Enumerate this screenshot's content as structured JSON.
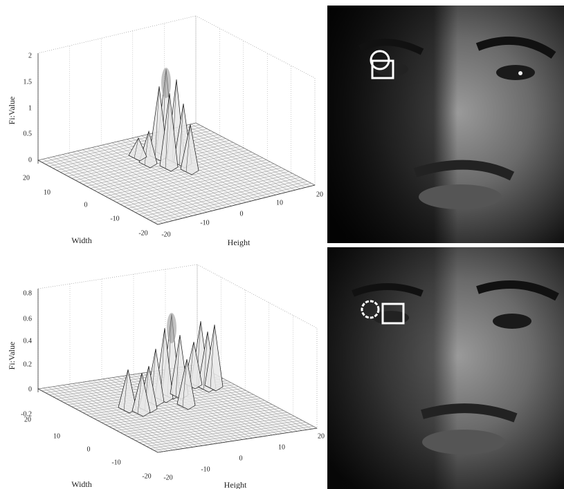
{
  "figure": {
    "plots": [
      {
        "z_label": "Fi:Value",
        "x_label": "Width",
        "y_label": "Height",
        "z_ticks": [
          0,
          0.5,
          1,
          1.5,
          2
        ],
        "width_ticks": [
          20,
          10,
          0,
          -10,
          -20
        ],
        "height_ticks": [
          -20,
          -10,
          0,
          10,
          20
        ]
      },
      {
        "z_label": "Fi:Value",
        "x_label": "Width",
        "y_label": "Height",
        "z_ticks": [
          -0.2,
          0,
          0.2,
          0.4,
          0.6,
          0.8
        ],
        "width_ticks": [
          20,
          10,
          0,
          -10,
          -20
        ],
        "height_ticks": [
          -20,
          -10,
          0,
          10,
          20
        ]
      }
    ]
  }
}
